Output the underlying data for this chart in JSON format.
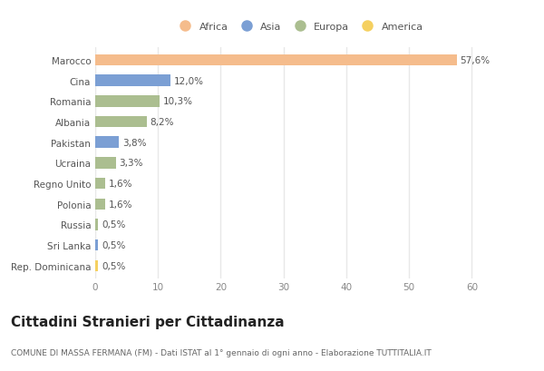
{
  "categories": [
    "Marocco",
    "Cina",
    "Romania",
    "Albania",
    "Pakistan",
    "Ucraina",
    "Regno Unito",
    "Polonia",
    "Russia",
    "Sri Lanka",
    "Rep. Dominicana"
  ],
  "values": [
    57.6,
    12.0,
    10.3,
    8.2,
    3.8,
    3.3,
    1.6,
    1.6,
    0.5,
    0.5,
    0.5
  ],
  "labels": [
    "57,6%",
    "12,0%",
    "10,3%",
    "8,2%",
    "3,8%",
    "3,3%",
    "1,6%",
    "1,6%",
    "0,5%",
    "0,5%",
    "0,5%"
  ],
  "continents": [
    "Africa",
    "Asia",
    "Europa",
    "Europa",
    "Asia",
    "Europa",
    "Europa",
    "Europa",
    "Europa",
    "Asia",
    "America"
  ],
  "colors": {
    "Africa": "#F5BC8C",
    "Asia": "#7B9FD4",
    "Europa": "#ABBE90",
    "America": "#F5D060"
  },
  "legend_order": [
    "Africa",
    "Asia",
    "Europa",
    "America"
  ],
  "title": "Cittadini Stranieri per Cittadinanza",
  "subtitle": "COMUNE DI MASSA FERMANA (FM) - Dati ISTAT al 1° gennaio di ogni anno - Elaborazione TUTTITALIA.IT",
  "xlim": [
    0,
    65
  ],
  "xticks": [
    0,
    10,
    20,
    30,
    40,
    50,
    60
  ],
  "background_color": "#ffffff",
  "grid_color": "#e8e8e8",
  "label_fontsize": 7.5,
  "ytick_fontsize": 7.5,
  "xtick_fontsize": 7.5,
  "title_fontsize": 11,
  "subtitle_fontsize": 6.5,
  "bar_height": 0.55
}
